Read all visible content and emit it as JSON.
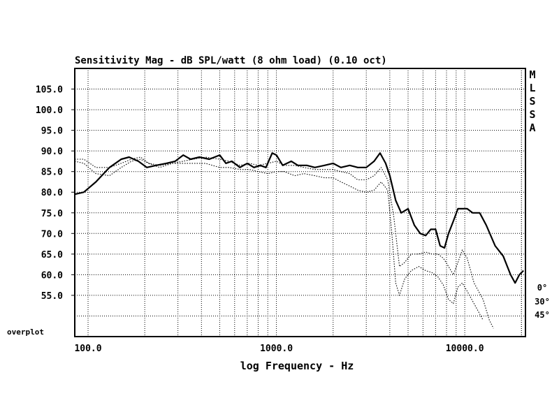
{
  "chart_data": {
    "type": "line",
    "title": "Sensitivity Mag - dB SPL/watt (8 ohm load) (0.10 oct)",
    "xlabel": "log Frequency - Hz",
    "ylabel": "",
    "x_scale": "log",
    "xlim": [
      85,
      21000
    ],
    "ylim": [
      45,
      110
    ],
    "grid": true,
    "overplot_label": "overplot",
    "system_label": [
      "M",
      "L",
      "S",
      "S",
      "A"
    ],
    "x_ticks": [
      {
        "value": 100,
        "label": "100.0"
      },
      {
        "value": 1000,
        "label": "1000.0"
      },
      {
        "value": 10000,
        "label": "10000.0"
      }
    ],
    "y_ticks": [
      {
        "value": 105,
        "label": "105.0"
      },
      {
        "value": 100,
        "label": "100.0"
      },
      {
        "value": 95,
        "label": "95.0"
      },
      {
        "value": 90,
        "label": "90.0"
      },
      {
        "value": 85,
        "label": "85.0"
      },
      {
        "value": 80,
        "label": "80.0"
      },
      {
        "value": 75,
        "label": "75.0"
      },
      {
        "value": 70,
        "label": "70.0"
      },
      {
        "value": 65,
        "label": "65.0"
      },
      {
        "value": 60,
        "label": "60.0"
      },
      {
        "value": 55,
        "label": "55.0"
      }
    ],
    "series": [
      {
        "name": "0°",
        "style": "solid",
        "points": [
          [
            85,
            79.5
          ],
          [
            95,
            80
          ],
          [
            110,
            82.5
          ],
          [
            130,
            86
          ],
          [
            150,
            88
          ],
          [
            165,
            88.5
          ],
          [
            185,
            87.5
          ],
          [
            205,
            86
          ],
          [
            230,
            86.5
          ],
          [
            260,
            87
          ],
          [
            290,
            87.5
          ],
          [
            320,
            89
          ],
          [
            350,
            88
          ],
          [
            390,
            88.5
          ],
          [
            440,
            88
          ],
          [
            500,
            89
          ],
          [
            540,
            87
          ],
          [
            580,
            87.5
          ],
          [
            640,
            86
          ],
          [
            700,
            87
          ],
          [
            760,
            86
          ],
          [
            820,
            86.5
          ],
          [
            880,
            86
          ],
          [
            950,
            89.5
          ],
          [
            1000,
            89
          ],
          [
            1080,
            86.5
          ],
          [
            1200,
            87.5
          ],
          [
            1300,
            86.5
          ],
          [
            1450,
            86.5
          ],
          [
            1600,
            86
          ],
          [
            1800,
            86.5
          ],
          [
            2000,
            87
          ],
          [
            2200,
            86
          ],
          [
            2450,
            86.5
          ],
          [
            2700,
            86
          ],
          [
            3000,
            86
          ],
          [
            3300,
            87.5
          ],
          [
            3550,
            89.5
          ],
          [
            3800,
            87
          ],
          [
            4000,
            84
          ],
          [
            4300,
            78
          ],
          [
            4600,
            75
          ],
          [
            5000,
            76
          ],
          [
            5400,
            72
          ],
          [
            5800,
            70
          ],
          [
            6200,
            69.5
          ],
          [
            6600,
            71
          ],
          [
            7000,
            71
          ],
          [
            7400,
            67
          ],
          [
            7800,
            66.5
          ],
          [
            8200,
            70
          ],
          [
            8700,
            73
          ],
          [
            9200,
            76
          ],
          [
            9700,
            76
          ],
          [
            10300,
            76
          ],
          [
            11000,
            75
          ],
          [
            12000,
            75
          ],
          [
            13000,
            72
          ],
          [
            14500,
            67
          ],
          [
            16000,
            64.5
          ],
          [
            17500,
            60
          ],
          [
            18500,
            58
          ],
          [
            19500,
            60
          ],
          [
            20500,
            61
          ]
        ]
      },
      {
        "name": "30°",
        "style": "dotted",
        "points": [
          [
            85,
            88
          ],
          [
            95,
            88
          ],
          [
            110,
            86
          ],
          [
            130,
            86
          ],
          [
            150,
            87
          ],
          [
            170,
            88
          ],
          [
            190,
            88.5
          ],
          [
            210,
            87
          ],
          [
            240,
            86
          ],
          [
            280,
            87
          ],
          [
            320,
            87.5
          ],
          [
            360,
            88
          ],
          [
            420,
            88.5
          ],
          [
            500,
            88
          ],
          [
            560,
            87.5
          ],
          [
            640,
            86.5
          ],
          [
            720,
            87
          ],
          [
            800,
            86.5
          ],
          [
            900,
            87
          ],
          [
            1000,
            87.5
          ],
          [
            1100,
            86.5
          ],
          [
            1250,
            86.5
          ],
          [
            1400,
            86
          ],
          [
            1600,
            85.5
          ],
          [
            1800,
            85.5
          ],
          [
            2000,
            85.5
          ],
          [
            2200,
            85
          ],
          [
            2450,
            84.5
          ],
          [
            2700,
            83
          ],
          [
            3000,
            83
          ],
          [
            3300,
            84
          ],
          [
            3600,
            86
          ],
          [
            3900,
            83
          ],
          [
            4200,
            74
          ],
          [
            4500,
            62
          ],
          [
            4800,
            63
          ],
          [
            5200,
            65
          ],
          [
            5700,
            65
          ],
          [
            6200,
            65.5
          ],
          [
            6700,
            65
          ],
          [
            7200,
            65
          ],
          [
            7700,
            64
          ],
          [
            8200,
            62
          ],
          [
            8700,
            60
          ],
          [
            9200,
            63
          ],
          [
            9700,
            66
          ],
          [
            10300,
            64
          ],
          [
            11200,
            58
          ],
          [
            12500,
            54
          ],
          [
            13500,
            49
          ],
          [
            14200,
            47
          ]
        ]
      },
      {
        "name": "45°",
        "style": "dotted",
        "points": [
          [
            85,
            87.5
          ],
          [
            95,
            87
          ],
          [
            110,
            84.5
          ],
          [
            130,
            84
          ],
          [
            150,
            86
          ],
          [
            170,
            87.5
          ],
          [
            190,
            88
          ],
          [
            210,
            87
          ],
          [
            240,
            86.5
          ],
          [
            280,
            87
          ],
          [
            320,
            87
          ],
          [
            360,
            87
          ],
          [
            420,
            87
          ],
          [
            500,
            86
          ],
          [
            560,
            86
          ],
          [
            640,
            85.5
          ],
          [
            720,
            85.5
          ],
          [
            800,
            85
          ],
          [
            900,
            84.5
          ],
          [
            1000,
            85
          ],
          [
            1100,
            85
          ],
          [
            1250,
            84
          ],
          [
            1400,
            84.5
          ],
          [
            1600,
            84
          ],
          [
            1800,
            83.5
          ],
          [
            2000,
            83.5
          ],
          [
            2200,
            82.5
          ],
          [
            2450,
            81.5
          ],
          [
            2700,
            80.5
          ],
          [
            3000,
            80
          ],
          [
            3300,
            80.5
          ],
          [
            3600,
            82.5
          ],
          [
            3900,
            80.5
          ],
          [
            4100,
            70
          ],
          [
            4300,
            58
          ],
          [
            4500,
            55
          ],
          [
            4800,
            59
          ],
          [
            5200,
            61
          ],
          [
            5700,
            62
          ],
          [
            6200,
            61
          ],
          [
            6700,
            60.5
          ],
          [
            7200,
            59.5
          ],
          [
            7700,
            57.5
          ],
          [
            8200,
            54
          ],
          [
            8700,
            53
          ],
          [
            9200,
            57
          ],
          [
            9700,
            58
          ],
          [
            10300,
            56
          ],
          [
            11200,
            53
          ],
          [
            12500,
            49
          ]
        ]
      }
    ]
  }
}
